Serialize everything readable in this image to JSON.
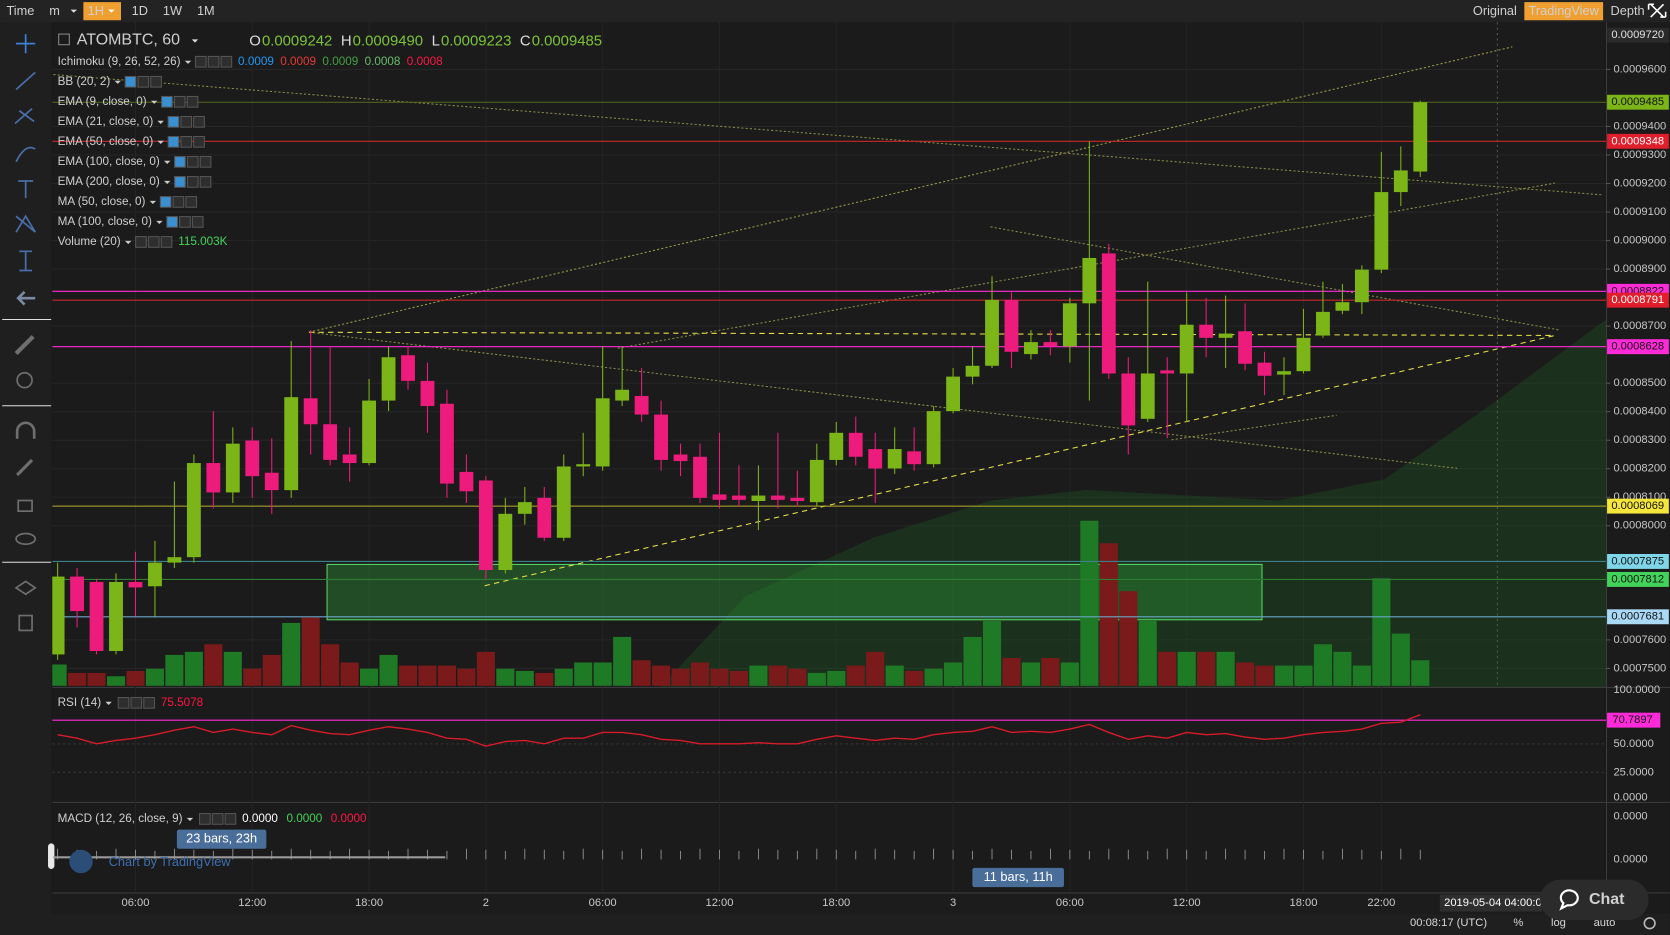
{
  "toolbar": {
    "left": [
      "Time",
      "m",
      "1H",
      "1D",
      "1W",
      "1M"
    ],
    "active": "1H",
    "right": [
      "Original",
      "TradingView",
      "Depth"
    ],
    "right_active": "TradingView"
  },
  "chart_data": {
    "type": "candlestick",
    "symbol": "ATOMBTC, 60",
    "readout": {
      "O": "0.0009242",
      "H": "0.0009490",
      "L": "0.0009223",
      "C": "0.0009485"
    },
    "indicators": [
      {
        "name": "Ichimoku (9, 26, 52, 26)",
        "values": [
          0.0009,
          0.0009,
          0.0009,
          0.0008,
          0.0008
        ],
        "colors": [
          "#2196f3",
          "#e53935",
          "#43a047",
          "#66bb6a",
          "#ff1744"
        ]
      },
      {
        "name": "BB (20, 2)"
      },
      {
        "name": "EMA (9, close, 0)"
      },
      {
        "name": "EMA (21, close, 0)"
      },
      {
        "name": "EMA (50, close, 0)"
      },
      {
        "name": "EMA (100, close, 0)"
      },
      {
        "name": "EMA (200, close, 0)"
      },
      {
        "name": "MA (50, close, 0)"
      },
      {
        "name": "MA (100, close, 0)"
      },
      {
        "name": "Volume (20)",
        "readout": "115.003K"
      }
    ],
    "categories": [
      null,
      null,
      null,
      null,
      "06:00",
      null,
      null,
      null,
      null,
      null,
      "12:00",
      null,
      null,
      null,
      null,
      null,
      "18:00",
      null,
      null,
      null,
      null,
      null,
      "2",
      null,
      null,
      null,
      null,
      null,
      "06:00",
      null,
      null,
      null,
      null,
      null,
      "12:00",
      null,
      null,
      null,
      null,
      null,
      "18:00",
      null,
      null,
      null,
      null,
      null,
      "3",
      null,
      null,
      null,
      null,
      null,
      "06:00",
      null,
      null,
      null,
      null,
      null,
      "12:00",
      null,
      null,
      null,
      null,
      null,
      "18:00",
      null,
      null,
      null,
      "22:00",
      null,
      null
    ],
    "candles": [
      [
        0.0007549,
        0.0007871,
        0.000753,
        0.0007822
      ],
      [
        0.0007822,
        0.0007852,
        0.0007644,
        0.0007701
      ],
      [
        0.0007803,
        0.0007814,
        0.0007549,
        0.0007561
      ],
      [
        0.0007561,
        0.0007833,
        0.0007549,
        0.0007803
      ],
      [
        0.0007803,
        0.0007909,
        0.0007682,
        0.0007784
      ],
      [
        0.0007788,
        0.0007947,
        0.0007682,
        0.0007871
      ],
      [
        0.0007871,
        0.0008155,
        0.0007852,
        0.000789
      ],
      [
        0.000789,
        0.000825,
        0.0007871,
        0.000822
      ],
      [
        0.000822,
        0.0008402,
        0.0008061,
        0.0008117
      ],
      [
        0.0008117,
        0.0008345,
        0.000808,
        0.0008288
      ],
      [
        0.0008299,
        0.0008345,
        0.0008098,
        0.0008174
      ],
      [
        0.0008186,
        0.0008307,
        0.0008042,
        0.0008125
      ],
      [
        0.0008125,
        0.0008648,
        0.0008098,
        0.0008451
      ],
      [
        0.0008447,
        0.0008686,
        0.000825,
        0.0008356
      ],
      [
        0.0008356,
        0.0008629,
        0.0008212,
        0.0008231
      ],
      [
        0.000825,
        0.0008345,
        0.0008155,
        0.000822
      ],
      [
        0.000822,
        0.0008515,
        0.0008212,
        0.0008439
      ],
      [
        0.0008439,
        0.0008629,
        0.0008402,
        0.0008591
      ],
      [
        0.0008598,
        0.0008629,
        0.0008477,
        0.0008508
      ],
      [
        0.0008508,
        0.0008572,
        0.0008326,
        0.000842
      ],
      [
        0.0008428,
        0.0008477,
        0.0008098,
        0.0008148
      ],
      [
        0.0008189,
        0.000825,
        0.000808,
        0.0008121
      ],
      [
        0.0008159,
        0.0008174,
        0.0007814,
        0.0007845
      ],
      [
        0.0007845,
        0.0008098,
        0.0007833,
        0.0008042
      ],
      [
        0.0008042,
        0.0008136,
        0.0008004,
        0.0008083
      ],
      [
        0.0008098,
        0.0008136,
        0.0007947,
        0.0007958
      ],
      [
        0.0007958,
        0.000825,
        0.0007947,
        0.0008208
      ],
      [
        0.0008208,
        0.0008326,
        0.0008174,
        0.0008216
      ],
      [
        0.0008208,
        0.0008629,
        0.0008193,
        0.0008447
      ],
      [
        0.0008439,
        0.0008629,
        0.000842,
        0.0008477
      ],
      [
        0.0008455,
        0.0008553,
        0.0008364,
        0.000839
      ],
      [
        0.000839,
        0.0008439,
        0.0008193,
        0.0008231
      ],
      [
        0.000825,
        0.0008288,
        0.0008174,
        0.0008227
      ],
      [
        0.0008242,
        0.0008288,
        0.000808,
        0.0008098
      ],
      [
        0.000811,
        0.0008326,
        0.0008061,
        0.0008091
      ],
      [
        0.0008106,
        0.0008212,
        0.0008068,
        0.0008091
      ],
      [
        0.0008087,
        0.0008212,
        0.0007985,
        0.0008106
      ],
      [
        0.0008106,
        0.0008326,
        0.0008061,
        0.0008091
      ],
      [
        0.0008098,
        0.0008193,
        0.0008068,
        0.0008087
      ],
      [
        0.0008083,
        0.0008288,
        0.0008068,
        0.0008231
      ],
      [
        0.0008231,
        0.0008364,
        0.0008212,
        0.0008326
      ],
      [
        0.0008326,
        0.0008383,
        0.0008212,
        0.0008242
      ],
      [
        0.0008269,
        0.0008326,
        0.000808,
        0.0008201
      ],
      [
        0.0008201,
        0.0008345,
        0.0008182,
        0.0008269
      ],
      [
        0.0008261,
        0.0008345,
        0.0008193,
        0.0008216
      ],
      [
        0.0008216,
        0.000842,
        0.0008205,
        0.0008402
      ],
      [
        0.0008402,
        0.0008553,
        0.0008394,
        0.0008523
      ],
      [
        0.0008523,
        0.0008629,
        0.0008496,
        0.0008561
      ],
      [
        0.0008561,
        0.0008875,
        0.0008553,
        0.0008792
      ],
      [
        0.0008792,
        0.0008818,
        0.0008553,
        0.000861
      ],
      [
        0.0008602,
        0.0008686,
        0.0008583,
        0.0008644
      ],
      [
        0.0008644,
        0.0008686,
        0.0008598,
        0.0008629
      ],
      [
        0.0008629,
        0.0008799,
        0.0008572,
        0.000878
      ],
      [
        0.000878,
        0.0009348,
        0.0008439,
        0.0008939
      ],
      [
        0.0008955,
        0.0008989,
        0.0008515,
        0.0008534
      ],
      [
        0.0008534,
        0.0008591,
        0.000825,
        0.0008352
      ],
      [
        0.0008375,
        0.0008856,
        0.0008364,
        0.0008534
      ],
      [
        0.0008545,
        0.0008591,
        0.0008307,
        0.0008534
      ],
      [
        0.0008534,
        0.0008818,
        0.0008364,
        0.0008705
      ],
      [
        0.0008705,
        0.0008799,
        0.0008591,
        0.0008659
      ],
      [
        0.0008659,
        0.0008807,
        0.0008553,
        0.0008674
      ],
      [
        0.0008682,
        0.000878,
        0.0008545,
        0.0008568
      ],
      [
        0.0008572,
        0.000861,
        0.0008458,
        0.0008526
      ],
      [
        0.000853,
        0.0008591,
        0.0008458,
        0.0008542
      ],
      [
        0.0008542,
        0.0008761,
        0.0008534,
        0.0008659
      ],
      [
        0.0008667,
        0.0008856,
        0.0008659,
        0.000875
      ],
      [
        0.0008754,
        0.0008848,
        0.0008742,
        0.0008784
      ],
      [
        0.0008784,
        0.0008913,
        0.0008742,
        0.0008898
      ],
      [
        0.0008898,
        0.0009311,
        0.0008886,
        0.000917
      ],
      [
        0.000917,
        0.000933,
        0.0009121,
        0.0009246
      ],
      [
        0.0009242,
        0.000949,
        0.0009223,
        0.0009485
      ]
    ],
    "volumes": [
      96000,
      58000,
      58000,
      43000,
      67000,
      77000,
      139000,
      153000,
      187000,
      153000,
      77000,
      139000,
      283000,
      307000,
      187000,
      105000,
      77000,
      139000,
      91000,
      91000,
      91000,
      77000,
      153000,
      77000,
      67000,
      58000,
      77000,
      105000,
      105000,
      220000,
      115000,
      91000,
      77000,
      105000,
      77000,
      67000,
      91000,
      91000,
      77000,
      58000,
      67000,
      91000,
      153000,
      91000,
      67000,
      77000,
      105000,
      220000,
      292000,
      125000,
      105000,
      125000,
      105000,
      743000,
      642000,
      426000,
      292000,
      153000,
      153000,
      153000,
      153000,
      105000,
      91000,
      91000,
      91000,
      187000,
      153000,
      91000,
      484000,
      235000,
      115003
    ],
    "up_color": "#7cb518",
    "down_color": "#ec1b7c",
    "volume_up_color": "#1f7a26",
    "volume_down_color": "#7a1a1a",
    "ylim": [
      0.0007439,
      0.0009765
    ],
    "yticks": [
      {
        "value": 0.00096,
        "label": "0.0009600"
      },
      {
        "value": 0.00094,
        "label": "0.0009400"
      },
      {
        "value": 0.00093,
        "label": "0.0009300"
      },
      {
        "value": 0.00092,
        "label": "0.0009200"
      },
      {
        "value": 0.00091,
        "label": "0.0009100"
      },
      {
        "value": 0.0009,
        "label": "0.0009000"
      },
      {
        "value": 0.00089,
        "label": "0.0008900"
      },
      {
        "value": 0.00087,
        "label": "0.0008700"
      },
      {
        "value": 0.00085,
        "label": "0.0008500"
      },
      {
        "value": 0.00084,
        "label": "0.0008400"
      },
      {
        "value": 0.00083,
        "label": "0.0008300"
      },
      {
        "value": 0.00082,
        "label": "0.0008200"
      },
      {
        "value": 0.00081,
        "label": "0.0008100"
      },
      {
        "value": 0.0008,
        "label": "0.0008000"
      },
      {
        "value": 0.00076,
        "label": "0.0007600"
      },
      {
        "value": 0.00075,
        "label": "0.0007500"
      }
    ],
    "price_lines": [
      {
        "value": 0.000972,
        "label": "0.0009720",
        "color": "#2a2a2a",
        "text_color": "#e0e0e0",
        "line": null
      },
      {
        "value": 0.0009485,
        "label": "0.0009485",
        "color": "#7cb518",
        "text_color": "#111111",
        "line": "#556b1f"
      },
      {
        "value": 0.0009348,
        "label": "0.0009348",
        "color": "#e01e2c",
        "text_color": "#ffffff",
        "line": "#c62828"
      },
      {
        "value": 0.0008822,
        "label": "0.0008822",
        "color": "#ff2bd9",
        "text_color": "#111111",
        "line": "#ff2bd9"
      },
      {
        "value": 0.0008791,
        "label": "0.0008791",
        "color": "#e01e2c",
        "text_color": "#ffffff",
        "line": "#c62828"
      },
      {
        "value": 0.0008628,
        "label": "0.0008628",
        "color": "#ff2bd9",
        "text_color": "#111111",
        "line": "#ff2bd9"
      },
      {
        "value": 0.0008069,
        "label": "0.0008069",
        "color": "#f5e63c",
        "text_color": "#111111",
        "line": "#b8ad2a"
      },
      {
        "value": 0.0007875,
        "label": "0.0007875",
        "color": "#7fd6e8",
        "text_color": "#111111",
        "line": "#3c7f8c"
      },
      {
        "value": 0.0007812,
        "label": "0.0007812",
        "color": "#42d45a",
        "text_color": "#111111",
        "line": "#2e7d32"
      },
      {
        "value": 0.0007681,
        "label": "0.0007681",
        "color": "#a9d9f5",
        "text_color": "#111111",
        "line": "#6aa6c9"
      }
    ],
    "rsi": {
      "name": "RSI (14)",
      "color": "#d81b2a",
      "values": [
        58,
        55,
        50,
        53,
        55,
        58,
        62,
        65,
        60,
        63,
        60,
        58,
        66,
        62,
        59,
        58,
        62,
        65,
        63,
        60,
        55,
        54,
        48,
        52,
        53,
        50,
        55,
        55,
        60,
        60,
        58,
        54,
        53,
        50,
        50,
        50,
        51,
        50,
        50,
        54,
        57,
        55,
        53,
        55,
        54,
        58,
        60,
        61,
        65,
        60,
        61,
        60,
        63,
        67,
        60,
        54,
        57,
        55,
        60,
        58,
        59,
        56,
        54,
        55,
        58,
        60,
        61,
        63,
        68,
        69,
        75.5078
      ],
      "ylim": [
        0,
        100
      ],
      "yticks": [
        {
          "value": 100,
          "label": "100.0000"
        },
        {
          "value": 50,
          "label": "50.0000"
        },
        {
          "value": 25,
          "label": "25.0000"
        },
        {
          "value": 0,
          "label": "0.0000"
        }
      ],
      "level": {
        "value": 70.7897,
        "label": "70.7897",
        "color": "#ff2bd9"
      }
    },
    "macd": {
      "name": "MACD (12, 26, close, 9)",
      "readouts": [
        "0.0000",
        "0.0000",
        "0.0000"
      ],
      "readout_colors": [
        "#ffffff",
        "#43d45a",
        "#ff1744"
      ],
      "axis_labels": [
        "0.0000",
        "0.0000"
      ]
    }
  },
  "overlays": {
    "bars_left": "23 bars, 23h",
    "bars_right": "11 bars, 11h",
    "credit": "Chart by TradingView",
    "crosshair_time": "2019-05-04 04:00:0"
  },
  "footer": {
    "clock": "00:08:17 (UTC)",
    "buttons": [
      "%",
      "log",
      "auto"
    ]
  },
  "chat": "Chat"
}
